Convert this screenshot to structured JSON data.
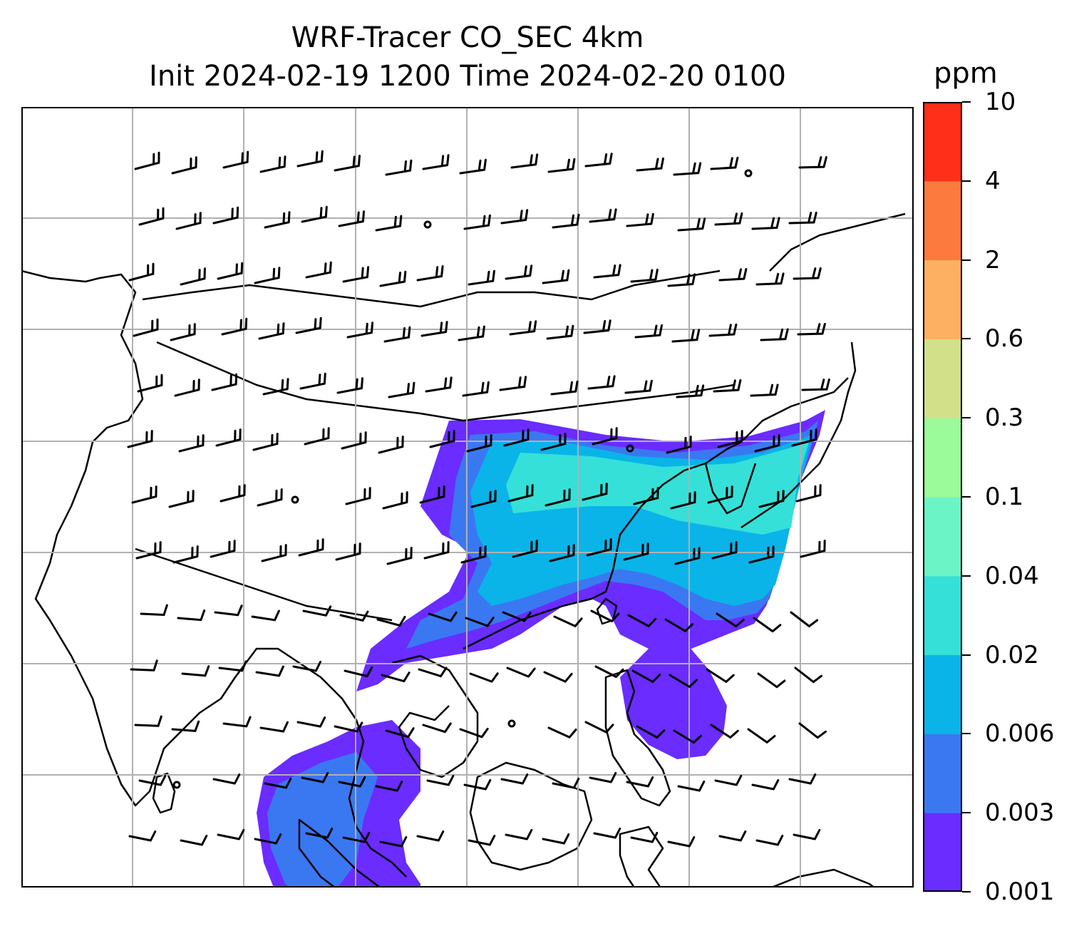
{
  "title": {
    "line1": "WRF-Tracer CO_SEC 4km",
    "line2": "Init 2024-02-19 1200 Time 2024-02-20 0100"
  },
  "colorbar": {
    "unit": "ppm",
    "ticks": [
      "0.001",
      "0.003",
      "0.006",
      "0.02",
      "0.04",
      "0.1",
      "0.3",
      "0.6",
      "2",
      "4",
      "10"
    ],
    "colors": [
      "#6a2cff",
      "#3a78f2",
      "#0ab4e8",
      "#35e0d8",
      "#6bf5c6",
      "#9bfa9a",
      "#d2e08a",
      "#fdb062",
      "#fd7a3e",
      "#ff2f1a"
    ]
  },
  "map": {
    "gridlines": true,
    "coastline_color": "#000000",
    "barb_color": "#000000"
  }
}
